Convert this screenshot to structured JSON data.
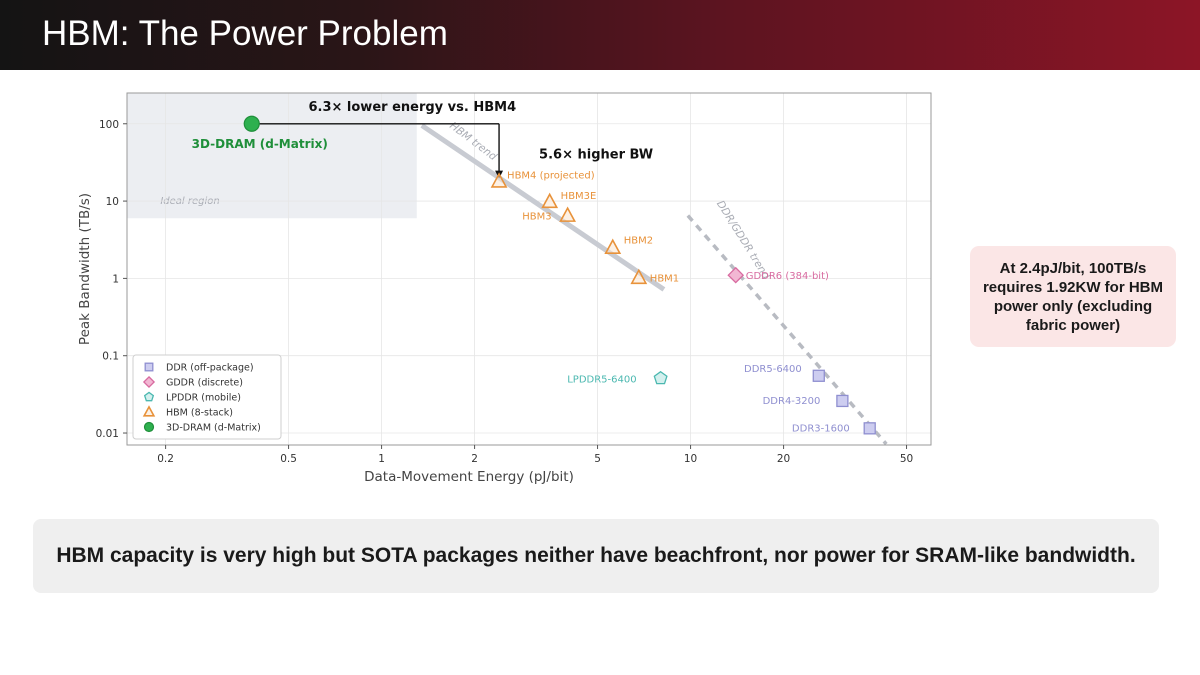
{
  "slide": {
    "title": "HBM: The Power Problem",
    "callout": "At 2.4pJ/bit, 100TB/s requires 1.92KW for HBM power only (excluding fabric power)",
    "footer": "HBM capacity is very high but SOTA packages neither have beachfront, nor power for SRAM-like bandwidth."
  },
  "chart_data": {
    "type": "scatter",
    "xlabel": "Data-Movement Energy (pJ/bit)",
    "ylabel": "Peak Bandwidth (TB/s)",
    "xscale": "log",
    "yscale": "log",
    "xlim": [
      0.15,
      60
    ],
    "ylim": [
      0.007,
      250
    ],
    "x_ticks": [
      0.2,
      0.5,
      1,
      2,
      5,
      10,
      20,
      50
    ],
    "x_tick_labels": [
      "0.2",
      "0.5",
      "1",
      "2",
      "5",
      "10",
      "20",
      "50"
    ],
    "y_ticks": [
      0.01,
      0.1,
      1,
      10,
      100
    ],
    "y_tick_labels": [
      "0.01",
      "0.1",
      "1",
      "10",
      "100"
    ],
    "grid": true,
    "legend_position": "bottom-left",
    "ideal_region": {
      "label": "Ideal region",
      "x_max": 1.3,
      "y_min": 6,
      "color": "#eceef2"
    },
    "series": [
      {
        "name": "DDR (off-package)",
        "marker": "square",
        "color": "#8f8fd0",
        "fill": "#cdcdf0",
        "points": [
          {
            "label": "DDR5-6400",
            "x": 26,
            "y": 0.055
          },
          {
            "label": "DDR4-3200",
            "x": 31,
            "y": 0.026
          },
          {
            "label": "DDR3-1600",
            "x": 38,
            "y": 0.0115
          }
        ]
      },
      {
        "name": "GDDR (discrete)",
        "marker": "diamond",
        "color": "#d86ba0",
        "fill": "#f2b7d3",
        "points": [
          {
            "label": "GDDR6 (384-bit)",
            "x": 14,
            "y": 1.1
          }
        ]
      },
      {
        "name": "LPDDR (mobile)",
        "marker": "pentagon",
        "color": "#4bb8b0",
        "fill": "#d3f0ee",
        "points": [
          {
            "label": "LPDDR5-6400",
            "x": 8,
            "y": 0.051
          }
        ]
      },
      {
        "name": "HBM (8-stack)",
        "marker": "triangle",
        "color": "#e8923a",
        "fill": "#fbe6d0",
        "points": [
          {
            "label": "HBM4 (projected)",
            "x": 2.4,
            "y": 18
          },
          {
            "label": "HBM3E",
            "x": 3.5,
            "y": 9.8
          },
          {
            "label": "HBM3",
            "x": 4,
            "y": 6.5
          },
          {
            "label": "HBM2",
            "x": 5.6,
            "y": 2.5
          },
          {
            "label": "HBM1",
            "x": 6.8,
            "y": 1.02
          }
        ]
      },
      {
        "name": "3D-DRAM (d-Matrix)",
        "marker": "circle",
        "color": "#1f8f3a",
        "fill": "#2eb04f",
        "points": [
          {
            "label": "3D-DRAM (d-Matrix)",
            "x": 0.38,
            "y": 100
          }
        ]
      }
    ],
    "trend_lines": [
      {
        "label": "HBM trend",
        "style": "solid",
        "color": "#c8cbd2",
        "x": [
          1.35,
          8.2
        ],
        "y": [
          95,
          0.72
        ]
      },
      {
        "label": "DDR/GDDR trend",
        "style": "dashed",
        "color": "#b8bbc2",
        "x": [
          9.8,
          43
        ],
        "y": [
          6.5,
          0.0072
        ]
      }
    ],
    "annotations": [
      {
        "text": "6.3× lower energy vs. HBM4",
        "kind": "horizontal-bracket",
        "x_from": 0.38,
        "x_to": 2.4,
        "y": 100
      },
      {
        "text": "5.6× higher BW",
        "kind": "vertical-arrow",
        "x": 2.4,
        "y_from": 100,
        "y_to": 19.5
      }
    ]
  }
}
